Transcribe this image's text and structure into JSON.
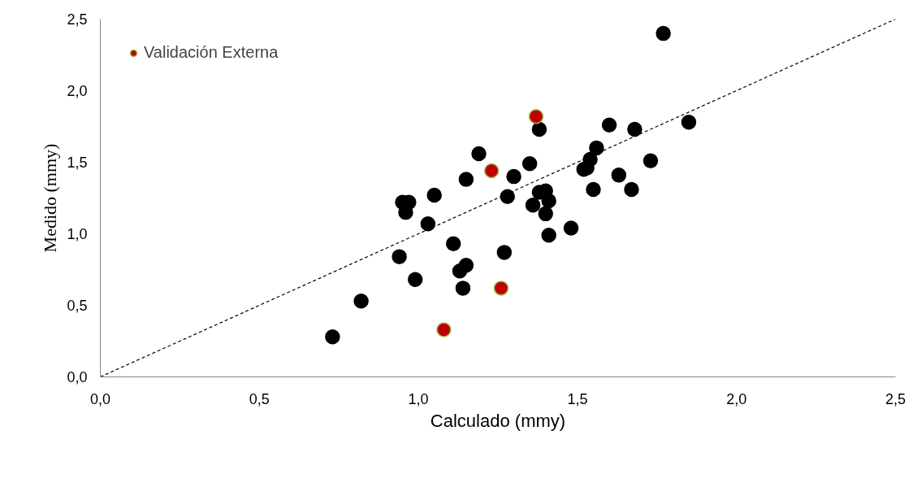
{
  "chart_data": {
    "type": "scatter",
    "xlabel": "Calculado (mmy)",
    "ylabel": "Medido (mmy)",
    "xlim": [
      0,
      2.5
    ],
    "ylim": [
      0,
      2.5
    ],
    "xticks": [
      {
        "value": 0,
        "label": "0,0"
      },
      {
        "value": 0.5,
        "label": "0,5"
      },
      {
        "value": 1,
        "label": "1,0"
      },
      {
        "value": 1.5,
        "label": "1,5"
      },
      {
        "value": 2,
        "label": "2,0"
      },
      {
        "value": 2.5,
        "label": "2,5"
      }
    ],
    "yticks": [
      {
        "value": 0,
        "label": "0,0"
      },
      {
        "value": 0.5,
        "label": "0,5"
      },
      {
        "value": 1,
        "label": "1,0"
      },
      {
        "value": 1.5,
        "label": "1,5"
      },
      {
        "value": 2,
        "label": "2,0"
      },
      {
        "value": 2.5,
        "label": "2,5"
      }
    ],
    "grid": false,
    "legend": "top left",
    "marker": "circle",
    "series": [
      {
        "type": "line",
        "color": "#000000",
        "line_style": "dashed",
        "marker": "none",
        "x": [
          0,
          2.5
        ],
        "values": [
          0,
          2.5
        ]
      },
      {
        "color": "#000000",
        "x": [
          0.73,
          0.82,
          0.94,
          0.95,
          0.97,
          0.96,
          0.99,
          1.03,
          1.05,
          1.11,
          1.13,
          1.14,
          1.15,
          1.15,
          1.19,
          1.27,
          1.28,
          1.3,
          1.35,
          1.38,
          1.36,
          1.38,
          1.4,
          1.41,
          1.4,
          1.41,
          1.48,
          1.52,
          1.53,
          1.54,
          1.56,
          1.55,
          1.6,
          1.63,
          1.67,
          1.68,
          1.73,
          1.77,
          1.85
        ],
        "values": [
          0.28,
          0.53,
          0.84,
          1.22,
          1.22,
          1.15,
          0.68,
          1.07,
          1.27,
          0.93,
          0.74,
          0.62,
          0.78,
          1.38,
          1.56,
          0.87,
          1.26,
          1.4,
          1.49,
          1.73,
          1.2,
          1.29,
          1.3,
          1.23,
          1.14,
          0.99,
          1.04,
          1.45,
          1.46,
          1.52,
          1.6,
          1.31,
          1.76,
          1.41,
          1.31,
          1.73,
          1.51,
          2.4,
          1.78
        ]
      },
      {
        "name": "Validación Externa",
        "color": "#c00000",
        "x": [
          1.37,
          1.23,
          1.26,
          1.08
        ],
        "values": [
          1.82,
          1.44,
          0.62,
          0.33
        ]
      }
    ]
  }
}
